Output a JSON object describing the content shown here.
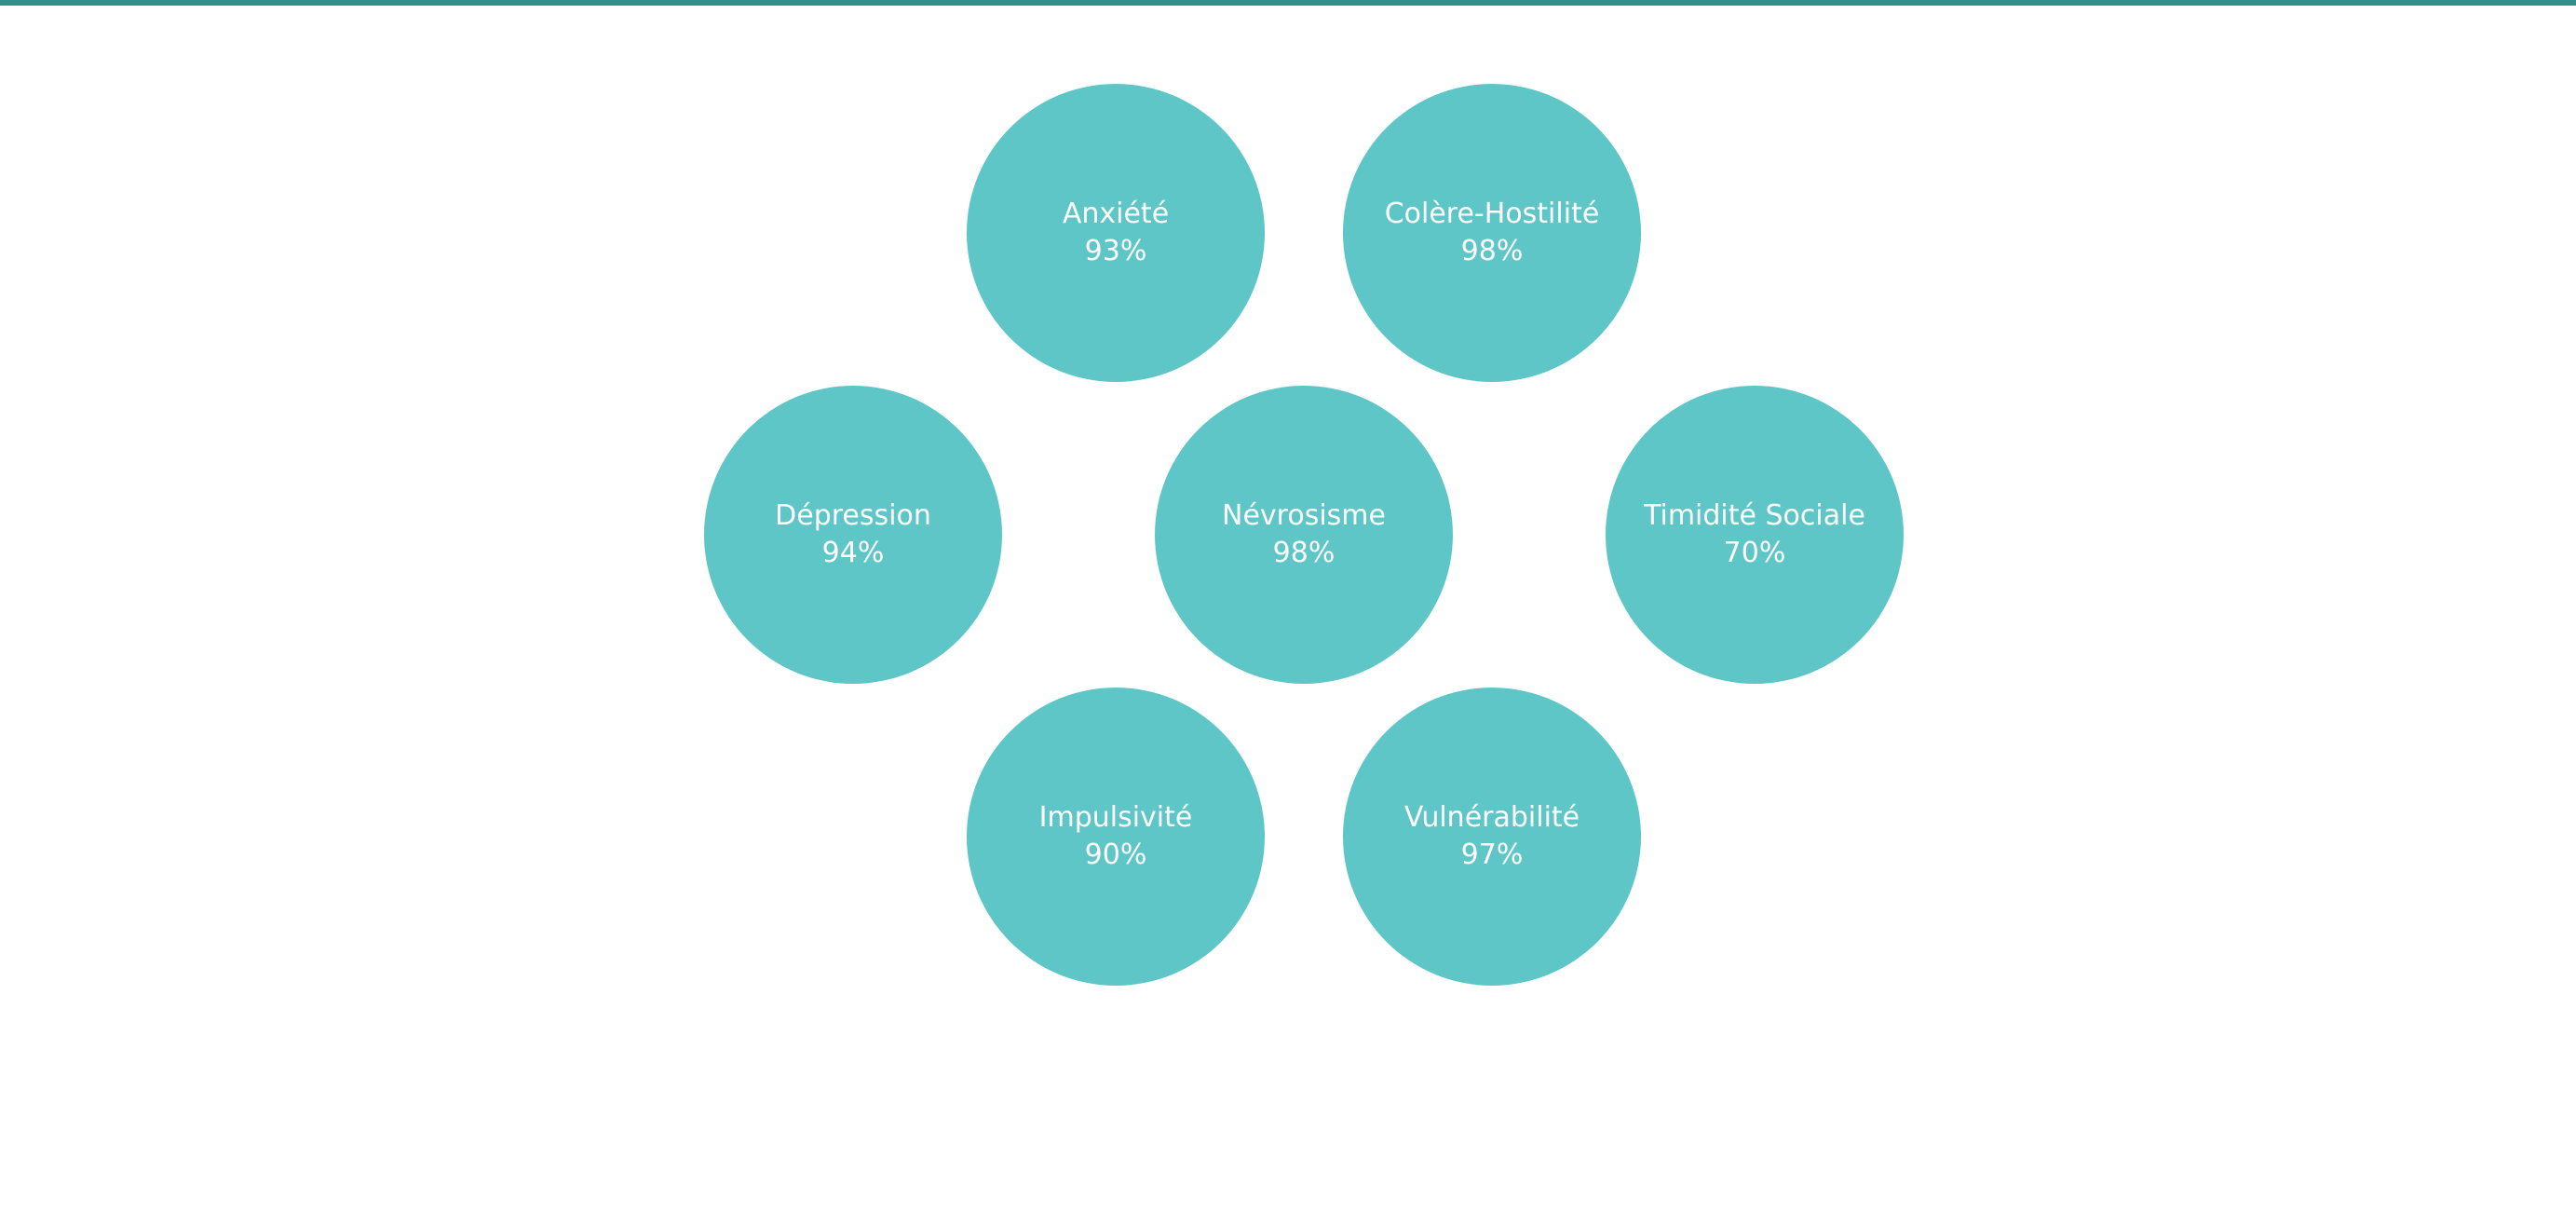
{
  "colors": {
    "top_bar": "#2f8f8a",
    "bubble": "#5fc6c8",
    "text": "#ffffff",
    "background": "#ffffff"
  },
  "facets": [
    {
      "label": "Anxiété",
      "value": "93%"
    },
    {
      "label": "Colère-Hostilité",
      "value": "98%"
    },
    {
      "label": "Dépression",
      "value": "94%"
    },
    {
      "label": "Névrosisme",
      "value": "98%"
    },
    {
      "label": "Timidité Sociale",
      "value": "70%"
    },
    {
      "label": "Impulsivité",
      "value": "90%"
    },
    {
      "label": "Vulnérabilité",
      "value": "97%"
    }
  ]
}
